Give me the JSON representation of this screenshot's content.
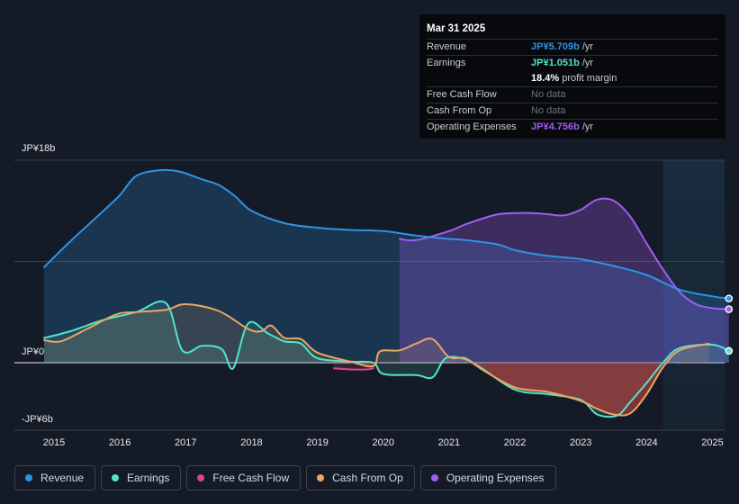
{
  "tooltip": {
    "date": "Mar 31 2025",
    "rows": [
      {
        "label": "Revenue",
        "value": "JP¥5.709b",
        "unit": "/yr",
        "color": "#2e93e6"
      },
      {
        "label": "Earnings",
        "value": "JP¥1.051b",
        "unit": "/yr",
        "color": "#52e3c8"
      },
      {
        "label": "",
        "value": "18.4%",
        "unit": "profit margin",
        "color": "#ffffff"
      },
      {
        "label": "Free Cash Flow",
        "value": "No data",
        "unit": "",
        "color": "#6c737d"
      },
      {
        "label": "Cash From Op",
        "value": "No data",
        "unit": "",
        "color": "#6c737d"
      },
      {
        "label": "Operating Expenses",
        "value": "JP¥4.756b",
        "unit": "/yr",
        "color": "#a25cf2"
      }
    ]
  },
  "legend": [
    {
      "label": "Revenue",
      "color": "#2e93e6"
    },
    {
      "label": "Earnings",
      "color": "#52e3c8"
    },
    {
      "label": "Free Cash Flow",
      "color": "#d9497f"
    },
    {
      "label": "Cash From Op",
      "color": "#e8a765"
    },
    {
      "label": "Operating Expenses",
      "color": "#a25cf2"
    }
  ],
  "chart_data": {
    "type": "area",
    "title": "",
    "xlabel": "",
    "ylabel": "",
    "unit": "JP¥ billions",
    "ylim": [
      -6,
      18
    ],
    "y_tick_labels": [
      "JP¥18b",
      "JP¥0",
      "-JP¥6b"
    ],
    "x_ticks": [
      "2015",
      "2016",
      "2017",
      "2018",
      "2019",
      "2020",
      "2021",
      "2022",
      "2023",
      "2024",
      "2025"
    ],
    "x_tick_values": [
      2015,
      2016,
      2017,
      2018,
      2019,
      2020,
      2021,
      2022,
      2023,
      2024,
      2025
    ],
    "forecast_band_start": 2024.25,
    "series": [
      {
        "name": "Revenue",
        "color": "#2e93e6",
        "x": [
          2014.85,
          2015.25,
          2015.75,
          2016.0,
          2016.25,
          2016.6,
          2016.9,
          2017.25,
          2017.5,
          2017.75,
          2018.0,
          2018.5,
          2019.0,
          2019.5,
          2020.0,
          2020.5,
          2021.0,
          2021.25,
          2021.75,
          2022.0,
          2022.5,
          2023.0,
          2023.5,
          2024.0,
          2024.5,
          2025.0,
          2025.25
        ],
        "values": [
          8.5,
          10.8,
          13.5,
          14.9,
          16.6,
          17.1,
          17.0,
          16.3,
          15.8,
          14.8,
          13.5,
          12.4,
          12.0,
          11.8,
          11.7,
          11.3,
          11.0,
          10.9,
          10.5,
          10.0,
          9.5,
          9.2,
          8.6,
          7.8,
          6.5,
          5.9,
          5.709
        ]
      },
      {
        "name": "Earnings",
        "color": "#52e3c8",
        "x": [
          2014.85,
          2015.25,
          2015.75,
          2016.25,
          2016.7,
          2016.95,
          2017.25,
          2017.55,
          2017.72,
          2017.95,
          2018.25,
          2018.5,
          2018.75,
          2019.0,
          2019.5,
          2019.85,
          2020.0,
          2020.5,
          2020.75,
          2020.95,
          2021.25,
          2021.5,
          2022.0,
          2022.5,
          2023.0,
          2023.25,
          2023.55,
          2023.75,
          2024.0,
          2024.25,
          2024.5,
          2025.0,
          2025.25
        ],
        "values": [
          2.2,
          2.8,
          3.8,
          4.5,
          5.3,
          1.1,
          1.5,
          1.2,
          -0.5,
          3.5,
          2.6,
          1.9,
          1.7,
          0.4,
          0.1,
          0.0,
          -1.0,
          -1.1,
          -1.3,
          0.4,
          0.3,
          -0.5,
          -2.4,
          -2.8,
          -3.3,
          -4.6,
          -4.7,
          -3.5,
          -1.8,
          0.0,
          1.3,
          1.6,
          1.051
        ]
      },
      {
        "name": "Free Cash Flow",
        "color": "#d9497f",
        "x": [
          2019.25,
          2019.5,
          2019.75,
          2019.85
        ],
        "values": [
          -0.5,
          -0.6,
          -0.6,
          -0.5
        ]
      },
      {
        "name": "Cash From Op",
        "color": "#e8a765",
        "x": [
          2014.85,
          2015.1,
          2015.5,
          2015.95,
          2016.25,
          2016.7,
          2017.0,
          2017.5,
          2017.95,
          2018.15,
          2018.3,
          2018.5,
          2018.75,
          2019.0,
          2019.5,
          2019.85,
          2019.95,
          2020.25,
          2020.5,
          2020.75,
          2021.0,
          2021.25,
          2021.5,
          2022.0,
          2022.5,
          2023.0,
          2023.25,
          2023.5,
          2023.75,
          2024.0,
          2024.25,
          2024.5,
          2024.95
        ],
        "values": [
          2.0,
          1.9,
          3.0,
          4.3,
          4.5,
          4.7,
          5.2,
          4.6,
          3.0,
          2.8,
          3.3,
          2.2,
          2.1,
          0.9,
          0.1,
          -0.3,
          1.0,
          1.1,
          1.7,
          2.1,
          0.5,
          0.4,
          -0.6,
          -2.2,
          -2.6,
          -3.4,
          -4.1,
          -4.6,
          -4.5,
          -2.8,
          -0.4,
          1.1,
          1.7
        ]
      },
      {
        "name": "Operating Expenses",
        "color": "#a25cf2",
        "x": [
          2020.25,
          2020.5,
          2021.0,
          2021.25,
          2021.5,
          2021.75,
          2022.0,
          2022.25,
          2022.5,
          2022.75,
          2023.0,
          2023.25,
          2023.5,
          2023.75,
          2024.0,
          2024.25,
          2024.5,
          2024.75,
          2025.0,
          2025.25
        ],
        "values": [
          11.0,
          10.9,
          11.7,
          12.3,
          12.8,
          13.2,
          13.3,
          13.3,
          13.2,
          13.1,
          13.6,
          14.5,
          14.4,
          13.0,
          10.6,
          8.3,
          6.3,
          5.2,
          4.85,
          4.756
        ]
      }
    ]
  }
}
